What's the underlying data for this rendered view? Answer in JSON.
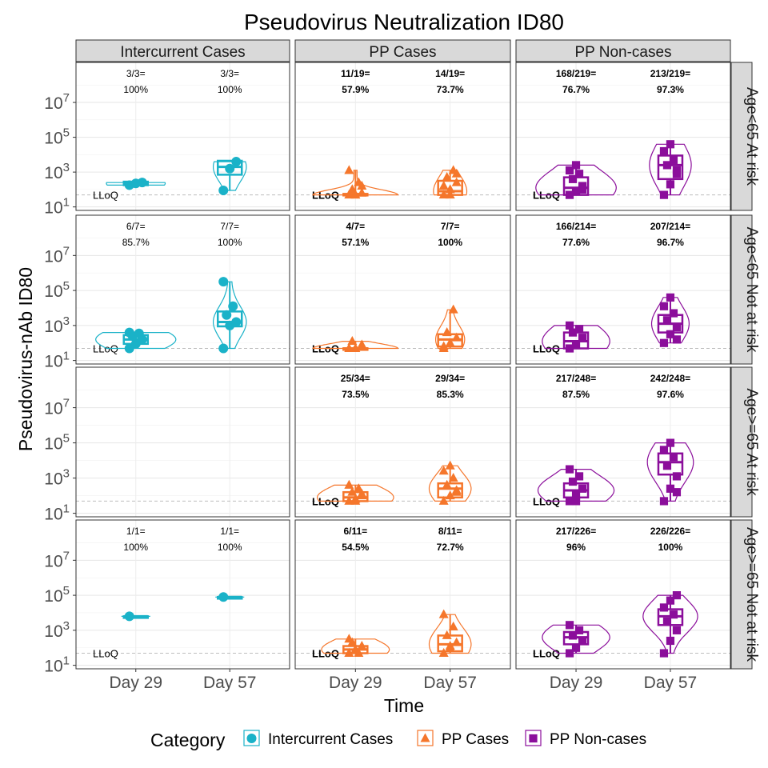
{
  "chart_data": {
    "type": "violin",
    "title": "Pseudovirus Neutralization ID80",
    "xlabel": "Time",
    "ylabel": "Pseudovirus-nAb ID80",
    "y_scale": "log10",
    "ylim_log10": [
      0.8,
      9.3
    ],
    "y_ticks": [
      {
        "base": "10",
        "exp": "1"
      },
      {
        "base": "10",
        "exp": "3"
      },
      {
        "base": "10",
        "exp": "5"
      },
      {
        "base": "10",
        "exp": "7"
      }
    ],
    "y_tick_values": [
      1,
      3,
      5,
      7
    ],
    "x_categories": [
      "Day 29",
      "Day 57"
    ],
    "lloq_label": "LLoQ",
    "lloq_log10": 1.69,
    "columns": [
      "Intercurrent Cases",
      "PP Cases",
      "PP Non-cases"
    ],
    "rows": [
      "Age<65 At risk",
      "Age<65 Not at risk",
      "Age>=65 At risk",
      "Age>=65 Not at risk"
    ],
    "legend": {
      "title": "Category",
      "position": "bottom",
      "items": [
        {
          "label": "Intercurrent Cases",
          "color": "#1ab2c8",
          "shape": "circle"
        },
        {
          "label": "PP Cases",
          "color": "#f5762b",
          "shape": "triangle"
        },
        {
          "label": "PP Non-cases",
          "color": "#8b0e9b",
          "shape": "square"
        }
      ]
    },
    "colors": {
      "Intercurrent Cases": "#1ab2c8",
      "PP Cases": "#f5762b",
      "PP Non-cases": "#8b0e9b"
    },
    "panels": [
      {
        "row": 0,
        "col": 0,
        "bold": false,
        "ratios": [
          [
            "3/3=",
            "100%"
          ],
          [
            "3/3=",
            "100%"
          ]
        ],
        "median": [
          2.35,
          3.3
        ],
        "q1": [
          2.25,
          2.85
        ],
        "q3": [
          2.45,
          3.65
        ],
        "vmax_width": [
          0.65,
          0.35
        ],
        "points": [
          [
            2.25,
            2.35,
            2.4
          ],
          [
            1.95,
            3.2,
            3.6
          ]
        ]
      },
      {
        "row": 0,
        "col": 1,
        "bold": true,
        "ratios": [
          [
            "11/19=",
            "57.9%"
          ],
          [
            "14/19=",
            "73.7%"
          ]
        ],
        "median": [
          1.69,
          1.9
        ],
        "q1": [
          1.69,
          1.69
        ],
        "q3": [
          1.75,
          2.5
        ],
        "vmax_width": [
          0.95,
          0.35
        ],
        "points": [
          [
            1.69,
            1.69,
            1.8,
            2.0,
            2.4,
            3.1,
            1.69,
            2.2
          ],
          [
            1.69,
            2.0,
            2.4,
            2.7,
            3.1,
            2.2,
            1.69,
            2.9
          ]
        ]
      },
      {
        "row": 0,
        "col": 2,
        "bold": true,
        "ratios": [
          [
            "168/219=",
            "76.7%"
          ],
          [
            "213/219=",
            "97.3%"
          ]
        ],
        "median": [
          2.1,
          3.4
        ],
        "q1": [
          1.69,
          2.6
        ],
        "q3": [
          2.7,
          3.95
        ],
        "vmax_width": [
          0.9,
          0.45
        ],
        "points": [
          [
            1.69,
            1.9,
            2.2,
            2.6,
            2.9,
            3.1,
            3.4,
            2.0
          ],
          [
            1.69,
            2.3,
            2.9,
            3.4,
            3.7,
            4.2,
            4.6,
            3.1
          ]
        ]
      },
      {
        "row": 1,
        "col": 0,
        "bold": false,
        "ratios": [
          [
            "6/7=",
            "85.7%"
          ],
          [
            "7/7=",
            "100%"
          ]
        ],
        "median": [
          2.2,
          3.2
        ],
        "q1": [
          1.95,
          2.95
        ],
        "q3": [
          2.45,
          3.8
        ],
        "vmax_width": [
          0.9,
          0.35
        ],
        "points": [
          [
            1.69,
            1.95,
            2.2,
            2.4,
            2.55,
            2.6
          ],
          [
            1.69,
            3.0,
            3.2,
            3.6,
            4.1,
            5.5
          ]
        ]
      },
      {
        "row": 1,
        "col": 1,
        "bold": true,
        "ratios": [
          [
            "4/7=",
            "57.1%"
          ],
          [
            "7/7=",
            "100%"
          ]
        ],
        "median": [
          1.69,
          2.2
        ],
        "q1": [
          1.69,
          1.8
        ],
        "q3": [
          1.7,
          2.5
        ],
        "vmax_width": [
          0.95,
          0.3
        ],
        "points": [
          [
            1.69,
            1.69,
            1.9,
            2.1
          ],
          [
            1.69,
            2.0,
            2.3,
            2.6,
            3.9,
            1.8
          ]
        ]
      },
      {
        "row": 1,
        "col": 2,
        "bold": true,
        "ratios": [
          [
            "166/214=",
            "77.6%"
          ],
          [
            "207/214=",
            "96.7%"
          ]
        ],
        "median": [
          2.1,
          3.1
        ],
        "q1": [
          1.69,
          2.6
        ],
        "q3": [
          2.6,
          3.6
        ],
        "vmax_width": [
          0.75,
          0.4
        ],
        "points": [
          [
            1.69,
            1.9,
            2.3,
            2.6,
            2.8,
            3.0
          ],
          [
            2.0,
            2.5,
            2.9,
            3.3,
            3.7,
            4.1,
            4.6,
            2.2
          ]
        ]
      },
      {
        "row": 2,
        "col": 1,
        "bold": true,
        "ratios": [
          [
            "25/34=",
            "73.5%"
          ],
          [
            "29/34=",
            "85.3%"
          ]
        ],
        "median": [
          1.9,
          2.4
        ],
        "q1": [
          1.69,
          1.9
        ],
        "q3": [
          2.2,
          2.7
        ],
        "vmax_width": [
          0.85,
          0.45
        ],
        "points": [
          [
            1.69,
            1.8,
            2.0,
            2.2,
            2.4,
            2.6,
            1.69,
            2.1
          ],
          [
            1.69,
            2.0,
            2.3,
            2.6,
            3.0,
            3.4,
            3.7,
            2.2
          ]
        ]
      },
      {
        "row": 2,
        "col": 2,
        "bold": true,
        "ratios": [
          [
            "217/248=",
            "87.5%"
          ],
          [
            "242/248=",
            "97.6%"
          ]
        ],
        "median": [
          2.3,
          3.9
        ],
        "q1": [
          1.9,
          3.2
        ],
        "q3": [
          2.7,
          4.4
        ],
        "vmax_width": [
          0.85,
          0.5
        ],
        "points": [
          [
            1.69,
            2.0,
            2.4,
            2.8,
            3.1,
            3.5,
            1.69
          ],
          [
            1.69,
            2.4,
            3.1,
            3.7,
            4.2,
            4.6,
            5.0,
            2.2
          ]
        ]
      },
      {
        "row": 3,
        "col": 0,
        "bold": false,
        "ratios": [
          [
            "1/1=",
            "100%"
          ],
          [
            "1/1=",
            "100%"
          ]
        ],
        "median": [
          3.8,
          4.9
        ],
        "q1": [
          3.8,
          4.9
        ],
        "q3": [
          3.8,
          4.9
        ],
        "vmax_width": [
          0.3,
          0.3
        ],
        "points": [
          [
            3.8
          ],
          [
            4.9
          ]
        ]
      },
      {
        "row": 3,
        "col": 1,
        "bold": true,
        "ratios": [
          [
            "6/11=",
            "54.5%"
          ],
          [
            "8/11=",
            "72.7%"
          ]
        ],
        "median": [
          1.9,
          2.2
        ],
        "q1": [
          1.69,
          1.8
        ],
        "q3": [
          2.1,
          2.7
        ],
        "vmax_width": [
          0.75,
          0.45
        ],
        "points": [
          [
            1.69,
            1.9,
            2.1,
            2.3,
            1.69,
            2.5
          ],
          [
            1.69,
            2.0,
            2.3,
            2.7,
            3.2,
            3.9,
            2.1
          ]
        ]
      },
      {
        "row": 3,
        "col": 2,
        "bold": true,
        "ratios": [
          [
            "217/226=",
            "96%"
          ],
          [
            "226/226=",
            "100%"
          ]
        ],
        "median": [
          2.6,
          3.8
        ],
        "q1": [
          2.2,
          3.3
        ],
        "q3": [
          2.9,
          4.2
        ],
        "vmax_width": [
          0.75,
          0.6
        ],
        "points": [
          [
            1.69,
            2.0,
            2.4,
            2.7,
            3.0,
            3.3
          ],
          [
            1.69,
            2.4,
            3.0,
            3.5,
            3.9,
            4.3,
            4.7,
            5.0
          ]
        ]
      }
    ]
  }
}
